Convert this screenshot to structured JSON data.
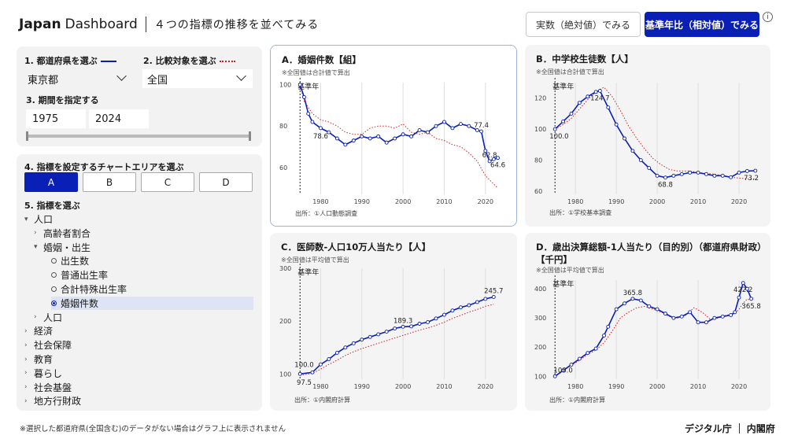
{
  "header": {
    "brand_bold": "Japan",
    "brand_light": "Dashboard",
    "subtitle": "４つの指標の推移を並べてみる",
    "mode_absolute": "実数（絶対値）でみる",
    "mode_relative": "基準年比（相対値）でみる",
    "info_icon": "i"
  },
  "controls": {
    "prefecture_label": "1. 都道府県を選ぶ",
    "prefecture_value": "東京都",
    "compare_label": "2. 比較対象を選ぶ",
    "compare_value": "全国",
    "period_label": "3. 期間を指定する",
    "year_start": "1975",
    "year_end": "2024",
    "main_color": "#0a1fb5",
    "compare_color": "#d02020"
  },
  "indicators": {
    "area_label": "4. 指標を設定するチャートエリアを選ぶ",
    "areas": [
      "A",
      "B",
      "C",
      "D"
    ],
    "select_label": "5. 指標を選ぶ",
    "tree": [
      {
        "text": "人口",
        "level": 0,
        "marker": "▾"
      },
      {
        "text": "高齢者割合",
        "level": 1,
        "marker": "›"
      },
      {
        "text": "婚姻・出生",
        "level": 1,
        "marker": "▾"
      },
      {
        "text": "出生数",
        "level": 2,
        "marker": "radio"
      },
      {
        "text": "普通出生率",
        "level": 2,
        "marker": "radio"
      },
      {
        "text": "合計特殊出生率",
        "level": 2,
        "marker": "radio"
      },
      {
        "text": "婚姻件数",
        "level": 2,
        "marker": "radio-on"
      },
      {
        "text": "人口",
        "level": 1,
        "marker": "›"
      },
      {
        "text": "経済",
        "level": 0,
        "marker": "›"
      },
      {
        "text": "社会保障",
        "level": 0,
        "marker": "›"
      },
      {
        "text": "教育",
        "level": 0,
        "marker": "›"
      },
      {
        "text": "暮らし",
        "level": 0,
        "marker": "›"
      },
      {
        "text": "社会基盤",
        "level": 0,
        "marker": "›"
      },
      {
        "text": "地方行財政",
        "level": 0,
        "marker": "›"
      }
    ]
  },
  "cards": {
    "a": {
      "title": "A．婚姻件数【組】",
      "note": "※全国値は合計値で算出",
      "source": "出所：①人口動態調査"
    },
    "b": {
      "title": "B．中学校生徒数【人】",
      "note": "※全国値は合計値で算出",
      "source": "出所：①学校基本調査"
    },
    "c": {
      "title": "C．医師数-人口10万人当たり【人】",
      "note": "※全国値は平均値で算出",
      "source": "出所：①内閣府計算"
    },
    "d": {
      "title": "D．歳出決算総額-1人当たり（目的別）（都道府県財政）【千円】",
      "note": "※全国値は平均値で算出",
      "source": "出所：①内閣府計算"
    }
  },
  "chart_data": [
    {
      "type": "line",
      "id": "a",
      "ylim": [
        47,
        101
      ],
      "yticks": [
        60,
        80,
        100
      ],
      "xlim": [
        1974,
        2025
      ],
      "xticks": [
        1980,
        1990,
        2000,
        2010,
        2020
      ],
      "base_label": "基準年",
      "series": [
        {
          "name": "東京都",
          "role": "main",
          "x": [
            1975,
            1976,
            1977,
            1978,
            1980,
            1982,
            1984,
            1986,
            1988,
            1990,
            1992,
            1994,
            1996,
            1998,
            2000,
            2002,
            2004,
            2006,
            2008,
            2010,
            2012,
            2014,
            2016,
            2018,
            2019,
            2020,
            2021,
            2022,
            2023
          ],
          "y": [
            100,
            94,
            86,
            82,
            79,
            77,
            74,
            71,
            73,
            75,
            74,
            75,
            72,
            74,
            76,
            75,
            78,
            77,
            80,
            82,
            79,
            81,
            80,
            78,
            77.4,
            68,
            63,
            64,
            64.6
          ]
        },
        {
          "name": "全国",
          "role": "compare",
          "x": [
            1975,
            1976,
            1978,
            1980,
            1982,
            1984,
            1986,
            1988,
            1990,
            1992,
            1994,
            1996,
            1998,
            2000,
            2002,
            2004,
            2006,
            2008,
            2010,
            2012,
            2014,
            2016,
            2018,
            2020,
            2022,
            2023
          ],
          "y": [
            100,
            92,
            86,
            83,
            82,
            80,
            77,
            76,
            76,
            79,
            80,
            80,
            79,
            81,
            77,
            76,
            77,
            74,
            73,
            71,
            70,
            67,
            63,
            56,
            52,
            50
          ]
        }
      ],
      "labels": [
        {
          "x": 1980,
          "y": 78.6,
          "text": "78.6",
          "pos": "below"
        },
        {
          "x": 2019,
          "y": 77.4,
          "text": "77.4",
          "pos": "above"
        },
        {
          "x": 2021,
          "y": 63,
          "text": "62.8",
          "pos": "above"
        },
        {
          "x": 2023,
          "y": 64.6,
          "text": "64.6",
          "pos": "below"
        }
      ]
    },
    {
      "type": "line",
      "id": "b",
      "ylim": [
        58,
        130
      ],
      "yticks": [
        60,
        80,
        100,
        120
      ],
      "xlim": [
        1974,
        2025
      ],
      "xticks": [
        1980,
        1990,
        2000,
        2010,
        2020
      ],
      "base_label": "基準年",
      "series": [
        {
          "name": "東京都",
          "role": "main",
          "x": [
            1975,
            1977,
            1979,
            1981,
            1983,
            1985,
            1986,
            1988,
            1990,
            1992,
            1994,
            1996,
            1998,
            2000,
            2002,
            2004,
            2006,
            2008,
            2010,
            2012,
            2014,
            2016,
            2018,
            2020,
            2022,
            2024
          ],
          "y": [
            100,
            105,
            110,
            117,
            121,
            124,
            124.7,
            114,
            103,
            94,
            86,
            80,
            75,
            70,
            68.8,
            70,
            71,
            72,
            72,
            71,
            70,
            70,
            69,
            72,
            73,
            73.2
          ]
        },
        {
          "name": "全国",
          "role": "compare",
          "x": [
            1975,
            1977,
            1979,
            1981,
            1983,
            1985,
            1987,
            1989,
            1991,
            1993,
            1995,
            1997,
            1999,
            2001,
            2003,
            2005,
            2008,
            2010,
            2014,
            2018,
            2022,
            2024
          ],
          "y": [
            100,
            103,
            107,
            113,
            119,
            124,
            127,
            121,
            112,
            102,
            94,
            87,
            81,
            77,
            74,
            73,
            73,
            72,
            71,
            69,
            68,
            68
          ]
        }
      ],
      "labels": [
        {
          "x": 1986,
          "y": 124.7,
          "text": "124.7",
          "pos": "below"
        },
        {
          "x": 1976,
          "y": 100,
          "text": "100.0",
          "pos": "below"
        },
        {
          "x": 2002,
          "y": 68.8,
          "text": "68.8",
          "pos": "below"
        },
        {
          "x": 2023,
          "y": 73.2,
          "text": "73.2",
          "pos": "below"
        }
      ]
    },
    {
      "type": "line",
      "id": "c",
      "ylim": [
        90,
        300
      ],
      "yticks": [
        100,
        200,
        300
      ],
      "xlim": [
        1974,
        2025
      ],
      "xticks": [
        1980,
        1990,
        2000,
        2010,
        2020
      ],
      "base_label": "基準年",
      "series": [
        {
          "name": "東京都",
          "role": "main",
          "x": [
            1975,
            1978,
            1980,
            1982,
            1984,
            1986,
            1988,
            1990,
            1992,
            1994,
            1996,
            1998,
            2000,
            2002,
            2004,
            2006,
            2008,
            2010,
            2012,
            2014,
            2016,
            2018,
            2020,
            2022
          ],
          "y": [
            100,
            103,
            118,
            128,
            140,
            150,
            158,
            165,
            170,
            175,
            180,
            186,
            189.3,
            190,
            195,
            198,
            205,
            212,
            220,
            226,
            230,
            236,
            242,
            245.7
          ]
        },
        {
          "name": "全国",
          "role": "compare",
          "x": [
            1975,
            1978,
            1980,
            1982,
            1984,
            1986,
            1988,
            1990,
            1992,
            1994,
            1996,
            1998,
            2000,
            2002,
            2004,
            2006,
            2008,
            2010,
            2012,
            2014,
            2016,
            2018,
            2020,
            2022
          ],
          "y": [
            97.5,
            101,
            109,
            118,
            126,
            135,
            142,
            148,
            153,
            158,
            163,
            168,
            173,
            178,
            183,
            187,
            192,
            198,
            205,
            211,
            217,
            222,
            228,
            232
          ]
        }
      ],
      "labels": [
        {
          "x": 1976,
          "y": 106,
          "text": "100.0",
          "pos": "above"
        },
        {
          "x": 1976,
          "y": 97.5,
          "text": "97.5",
          "pos": "below"
        },
        {
          "x": 2000,
          "y": 189.3,
          "text": "189.3",
          "pos": "above"
        },
        {
          "x": 2022,
          "y": 245.7,
          "text": "245.7",
          "pos": "above"
        }
      ]
    },
    {
      "type": "line",
      "id": "d",
      "ylim": [
        90,
        430
      ],
      "yticks": [
        100,
        200,
        300,
        400
      ],
      "xlim": [
        1974,
        2025
      ],
      "xticks": [
        1980,
        1990,
        2000,
        2010,
        2020
      ],
      "base_label": "基準年",
      "series": [
        {
          "name": "東京都",
          "role": "main",
          "x": [
            1975,
            1977,
            1979,
            1981,
            1983,
            1985,
            1987,
            1988,
            1990,
            1992,
            1994,
            1996,
            1998,
            2000,
            2002,
            2004,
            2006,
            2008,
            2010,
            2012,
            2014,
            2016,
            2018,
            2019,
            2020,
            2021,
            2022,
            2023
          ],
          "y": [
            100,
            120,
            140,
            160,
            180,
            195,
            240,
            270,
            330,
            350,
            365.8,
            360,
            340,
            330,
            315,
            300,
            305,
            320,
            285,
            285,
            300,
            305,
            310,
            320,
            370,
            420,
            400,
            365.8
          ]
        },
        {
          "name": "全国",
          "role": "compare",
          "x": [
            1975,
            1977,
            1979,
            1981,
            1983,
            1985,
            1987,
            1989,
            1991,
            1993,
            1995,
            1997,
            1999,
            2001,
            2003,
            2005,
            2007,
            2009,
            2011,
            2013,
            2015,
            2017,
            2019,
            2020,
            2021,
            2022,
            2023
          ],
          "y": [
            100,
            118,
            138,
            155,
            175,
            190,
            215,
            255,
            300,
            320,
            335,
            340,
            330,
            320,
            305,
            300,
            310,
            335,
            320,
            295,
            300,
            310,
            315,
            330,
            350,
            365,
            360
          ]
        }
      ],
      "labels": [
        {
          "x": 1977,
          "y": 100,
          "text": "100.0",
          "pos": "above"
        },
        {
          "x": 1994,
          "y": 365.8,
          "text": "365.8",
          "pos": "above"
        },
        {
          "x": 2021,
          "y": 422,
          "text": "422.2",
          "pos": "below"
        },
        {
          "x": 2023,
          "y": 365.8,
          "text": "365.8",
          "pos": "below"
        }
      ]
    }
  ],
  "footer": {
    "note": "※選択した都道府県(全国含む)のデータがない場合はグラフ上に表示されません",
    "logo1": "デジタル庁",
    "logo2": "内閣府"
  }
}
